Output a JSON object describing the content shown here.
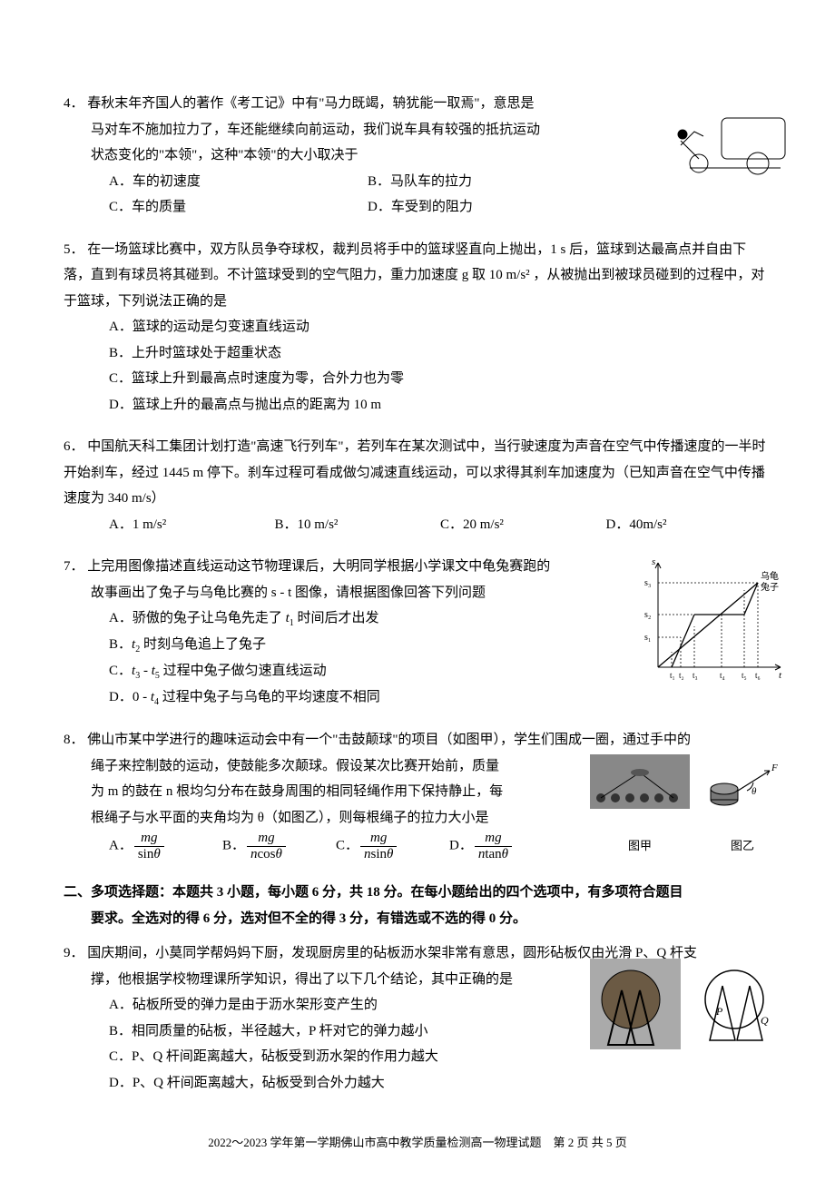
{
  "questions": [
    {
      "num": "4．",
      "stem_lines": [
        "春秋末年齐国人的著作《考工记》中有\"马力既竭，辀犹能一取焉\"，意思是",
        "马对车不施加拉力了，车还能继续向前运动，我们说车具有较强的抵抗运动",
        "状态变化的\"本领\"，这种\"本领\"的大小取决于"
      ],
      "options_layout": "cols-2",
      "options": [
        "A．车的初速度",
        "B．马队车的拉力",
        "C．车的质量",
        "D．车受到的阻力"
      ],
      "figure": "cart"
    },
    {
      "num": "5．",
      "stem_lines": [
        "在一场篮球比赛中，双方队员争夺球权，裁判员将手中的篮球竖直向上抛出，1 s 后，篮球到达最高点并自由下落，直到有球员将其碰到。不计篮球受到的空气阻力，重力加速度 g 取 10 m/s² ，从被抛出到被球员碰到的过程中，对于篮球，下列说法正确的是"
      ],
      "options_layout": "cols-1",
      "options": [
        "A．篮球的运动是匀变速直线运动",
        "B．上升时篮球处于超重状态",
        "C．篮球上升到最高点时速度为零，合外力也为零",
        "D．篮球上升的最高点与抛出点的距离为 10 m"
      ]
    },
    {
      "num": "6．",
      "stem_lines": [
        "中国航天科工集团计划打造\"高速飞行列车\"，若列车在某次测试中，当行驶速度为声音在空气中传播速度的一半时开始刹车，经过 1445 m 停下。刹车过程可看成做匀减速直线运动，可以求得其刹车加速度为（已知声音在空气中传播速度为 340 m/s）"
      ],
      "options_layout": "cols-4",
      "options": [
        "A．1 m/s²",
        "B．10 m/s²",
        "C．20 m/s²",
        "D．40m/s²"
      ]
    },
    {
      "num": "7．",
      "stem_lines": [
        "上完用图像描述直线运动这节物理课后，大明同学根据小学课文中龟兔赛跑的",
        "故事画出了兔子与乌龟比赛的 s - t 图像，请根据图像回答下列问题"
      ],
      "options_layout": "cols-1",
      "options_raw": [
        "A．骄傲的兔子让乌龟先走了 <i>t</i><sub>1</sub> 时间后才出发",
        "B．<i>t</i><sub>2</sub> 时刻乌龟追上了兔子",
        "C．<i>t</i><sub>3</sub> - <i>t</i><sub>5</sub> 过程中兔子做匀速直线运动",
        "D．0 - <i>t</i><sub>4</sub> 过程中兔子与乌龟的平均速度不相同"
      ],
      "figure": "st"
    },
    {
      "num": "8．",
      "stem_lines": [
        "佛山市某中学进行的趣味运动会中有一个\"击鼓颠球\"的项目（如图甲），学生们围成一圈，通过手中的",
        "绳子来控制鼓的运动，使鼓能多次颠球。假设某次比赛开始前，质量",
        "为 m 的鼓在 n 根均匀分布在鼓身周围的相同轻绳作用下保持静止，每",
        "根绳子与水平面的夹角均为 θ（如图乙），则每根绳子的拉力大小是"
      ],
      "figure": "drum",
      "fig_labels": [
        "图甲",
        "图乙"
      ]
    }
  ],
  "q8_options": {
    "A": {
      "num": "mg",
      "den": "sinθ"
    },
    "B": {
      "num": "mg",
      "den": "ncosθ"
    },
    "C": {
      "num": "mg",
      "den": "nsinθ"
    },
    "D": {
      "num": "mg",
      "den": "ntanθ"
    }
  },
  "section2": {
    "heading_line1": "二、多项选择题：本题共 3 小题，每小题 6 分，共 18 分。在每小题给出的四个选项中，有多项符合题目",
    "heading_line2": "要求。全选对的得 6 分，选对但不全的得 3 分，有错选或不选的得 0 分。"
  },
  "q9": {
    "num": "9．",
    "stem_lines": [
      "国庆期间，小莫同学帮妈妈下厨，发现厨房里的砧板沥水架非常有意思，圆形砧板仅由光滑 P、Q 杆支",
      "撑，他根据学校物理课所学知识，得出了以下几个结论，其中正确的是"
    ],
    "options": [
      "A．砧板所受的弹力是由于沥水架形变产生的",
      "B．相同质量的砧板，半径越大，P 杆对它的弹力越小",
      "C．P、Q 杆间距离越大，砧板受到沥水架的作用力越大",
      "D．P、Q 杆间距离越大，砧板受到合外力越大"
    ],
    "figure": "board"
  },
  "st_chart": {
    "axis_x_label": "t",
    "axis_y_label": "s",
    "x_ticks": [
      "t₁",
      "t₂",
      "t₃",
      "t₄",
      "t₅",
      "t₆"
    ],
    "y_ticks": [
      "s₁",
      "s₂",
      "s₃"
    ],
    "legend": [
      "乌龟",
      "兔子"
    ],
    "colors": {
      "axis": "#000000",
      "line_tortoise": "#000000",
      "line_rabbit": "#000000",
      "dash": "#000000"
    },
    "line_width": 1.2
  },
  "footer": "2022～2023 学年第一学期佛山市高中教学质量检测高一物理试题　第 2 页 共 5 页"
}
